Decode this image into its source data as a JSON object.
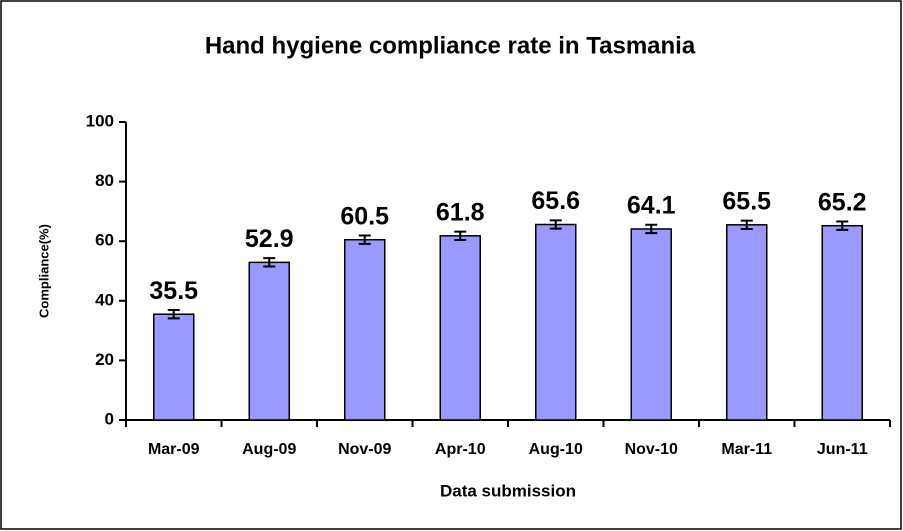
{
  "chart_data": {
    "type": "bar",
    "title": "Hand hygiene compliance rate in Tasmania",
    "x_label": "Data submission",
    "y_label": "Compliance(%)",
    "categories": [
      "Mar-09",
      "Aug-09",
      "Nov-09",
      "Apr-10",
      "Aug-10",
      "Nov-10",
      "Mar-11",
      "Jun-11"
    ],
    "values": [
      35.5,
      52.9,
      60.5,
      61.8,
      65.6,
      64.1,
      65.5,
      65.2
    ],
    "errors": [
      1.4,
      1.4,
      1.4,
      1.4,
      1.4,
      1.4,
      1.4,
      1.4
    ],
    "color": "#9999ff",
    "ylim": [
      0,
      100
    ],
    "yticks": [
      0,
      20,
      40,
      60,
      80,
      100
    ],
    "grid": false
  }
}
